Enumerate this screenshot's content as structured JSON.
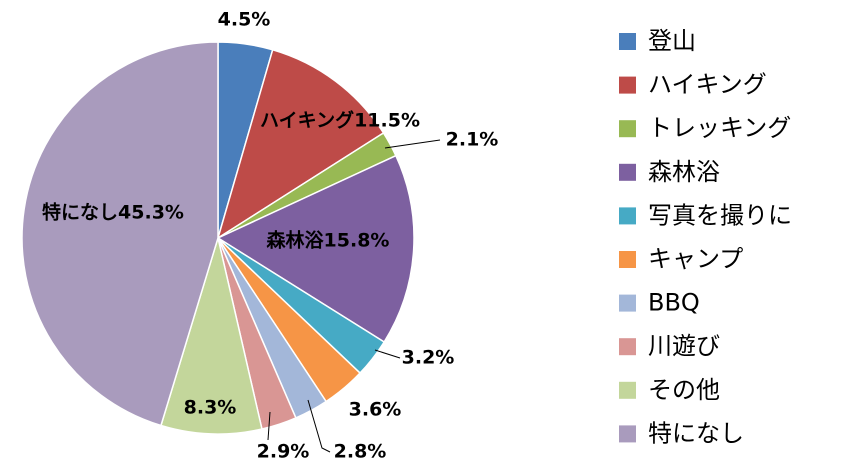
{
  "chart_data": {
    "type": "pie",
    "categories": [
      "登山",
      "ハイキング",
      "トレッキング",
      "森林浴",
      "写真を撮りに",
      "キャンプ",
      "BBQ",
      "川遊び",
      "その他",
      "特になし"
    ],
    "values": [
      4.5,
      11.5,
      2.1,
      15.8,
      3.2,
      3.6,
      2.8,
      2.9,
      8.3,
      45.3
    ],
    "value_labels": [
      "4.5%",
      "ハイキング11.5%",
      "2.1%",
      "森林浴15.8%",
      "3.2%",
      "3.6%",
      "2.8%",
      "2.9%",
      "8.3%",
      "特になし45.3%"
    ],
    "colors": [
      "#4a7ebb",
      "#be4b48",
      "#98b954",
      "#7d60a0",
      "#46aac5",
      "#f69546",
      "#a3b7d9",
      "#d99694",
      "#c3d69b",
      "#a99bbd"
    ],
    "legend": "right"
  }
}
